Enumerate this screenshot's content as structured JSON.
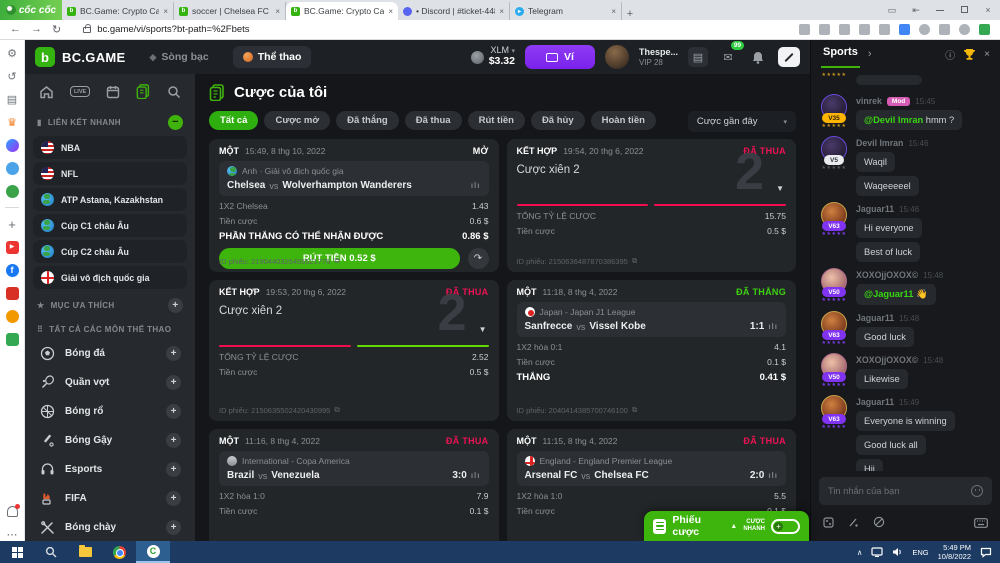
{
  "colors": {
    "accent_green": "#3fb30c",
    "lost_red": "#ed1254",
    "won_green": "#3ed312",
    "purple": "#8133f2"
  },
  "browser": {
    "brand": "cốc cốc",
    "url": "bc.game/vi/sports?bt-path=%2Fbets",
    "tabs": [
      {
        "title": "BC.Game: Crypto Casino Gan",
        "icon": "bcgame",
        "active": false
      },
      {
        "title": "soccer | Chelsea FC vs Wolve",
        "icon": "bcgame",
        "active": false
      },
      {
        "title": "BC.Game: Crypto Casino Gan",
        "icon": "bcgame",
        "active": true
      },
      {
        "title": "• Discord | #ticket-4481 | BC",
        "icon": "discord",
        "active": false
      },
      {
        "title": "Telegram",
        "icon": "telegram",
        "active": false
      }
    ]
  },
  "rail_icons": [
    "settings",
    "history",
    "feed",
    "crown",
    "messenger",
    "zalo",
    "games",
    "divider",
    "add",
    "youtube",
    "facebook",
    "shop",
    "alarm",
    "gift",
    "spacer",
    "bell",
    "more"
  ],
  "header": {
    "logo_letter": "b",
    "logo_text": "BC.GAME",
    "nav": [
      {
        "label": "Sòng bạc"
      },
      {
        "label": "Thể thao"
      }
    ],
    "active_nav": 1,
    "currency": "XLM",
    "balance": "$3.32",
    "wallet_label": "Ví",
    "username": "Thespe...",
    "vip_label": "VIP 28",
    "mail_badge": "99"
  },
  "sidebar": {
    "live_label": "LIVE",
    "quick_links_title": "LIÊN KẾT NHANH",
    "quick_links": [
      {
        "label": "NBA",
        "flag": "us"
      },
      {
        "label": "NFL",
        "flag": "us"
      },
      {
        "label": "ATP Astana, Kazakhstan",
        "flag": "globe"
      },
      {
        "label": "Cúp C1 châu Âu",
        "flag": "globe"
      },
      {
        "label": "Cúp C2 châu Âu",
        "flag": "globe"
      },
      {
        "label": "Giải vô địch quốc gia",
        "flag": "eng"
      }
    ],
    "favorites_title": "MỤC ƯA THÍCH",
    "all_sports_title": "TẤT CẢ CÁC MÔN THỂ THAO",
    "sports": [
      {
        "label": "Bóng đá",
        "icon": "football"
      },
      {
        "label": "Quần vợt",
        "icon": "tennis"
      },
      {
        "label": "Bóng rổ",
        "icon": "basketball"
      },
      {
        "label": "Bóng Gậy",
        "icon": "cricket"
      },
      {
        "label": "Esports",
        "icon": "esports"
      },
      {
        "label": "FIFA",
        "icon": "fifa"
      },
      {
        "label": "Bóng chày",
        "icon": "baseball"
      }
    ]
  },
  "main": {
    "title": "Cược của tôi",
    "filters": [
      "Tất cả",
      "Cược mở",
      "Đã thắng",
      "Đã thua",
      "Rút tiền",
      "Đã hủy",
      "Hoàn tiền"
    ],
    "active_filter": 0,
    "sort_label": "Cược gần đây",
    "labels": {
      "vs": "vs",
      "id_prefix": "ID phiếu:"
    },
    "cards": [
      {
        "kind": "single",
        "type_label": "MỘT",
        "time": "15:49, 8 thg 10, 2022",
        "status": "MỞ",
        "status_type": "open",
        "league": "Anh · Giải vô địch quốc gia",
        "league_flag": "globe",
        "home": "Chelsea",
        "away": "Wolverhampton Wanderers",
        "score": "",
        "rows": [
          {
            "label": "1X2 Chelsea",
            "value": "1.43"
          },
          {
            "label": "Tiền cược",
            "value": "0.6 $"
          }
        ],
        "result_label": "PHẦN THẮNG CÓ THỂ NHẬN ĐƯỢC",
        "result_value": "0.86 $",
        "cashout": "RÚT TIỀN 0.52 $",
        "bet_id": "2190440325455521776"
      },
      {
        "kind": "combo",
        "type_label": "KẾT HỢP",
        "time": "19:54, 20 thg 6, 2022",
        "status": "ĐÃ THUA",
        "status_type": "lost",
        "combo_title": "Cược xiên 2",
        "combo_count": "2",
        "legs": [
          "lost",
          "lost"
        ],
        "rows": [
          {
            "label": "TỔNG TỶ LỆ CƯỢC",
            "value": "15.75"
          },
          {
            "label": "Tiền cược",
            "value": "0.5 $"
          }
        ],
        "bet_id": "2150636487870386395"
      },
      {
        "kind": "combo",
        "type_label": "KẾT HỢP",
        "time": "19:53, 20 thg 6, 2022",
        "status": "ĐÃ THUA",
        "status_type": "lost",
        "combo_title": "Cược xiên 2",
        "combo_count": "2",
        "legs": [
          "lost",
          "won"
        ],
        "rows": [
          {
            "label": "TỔNG TỶ LỆ CƯỢC",
            "value": "2.52"
          },
          {
            "label": "Tiền cược",
            "value": "0.5 $"
          }
        ],
        "bet_id": "2150635502420430995"
      },
      {
        "kind": "single",
        "type_label": "MỘT",
        "time": "11:18, 8 thg 4, 2022",
        "status": "ĐÃ THẮNG",
        "status_type": "won",
        "league": "Japan - Japan J1 League",
        "league_flag": "jp",
        "home": "Sanfrecce",
        "away": "Vissel Kobe",
        "score": "1:1",
        "rows": [
          {
            "label": "1X2 hòa  0:1",
            "value": "4.1"
          },
          {
            "label": "Tiền cược",
            "value": "0.1 $"
          }
        ],
        "result_label": "THẮNG",
        "result_value": "0.41 $",
        "bet_id": "2040414385700746100"
      },
      {
        "kind": "single",
        "type_label": "MỘT",
        "time": "11:16, 8 thg 4, 2022",
        "status": "ĐÃ THUA",
        "status_type": "lost",
        "league": "International - Copa America",
        "league_flag": "int",
        "home": "Brazil",
        "away": "Venezuela",
        "score": "3:0",
        "rows": [
          {
            "label": "1X2 hòa  1:0",
            "value": "7.9"
          },
          {
            "label": "Tiền cược",
            "value": "0.1 $"
          }
        ]
      },
      {
        "kind": "single",
        "type_label": "MỘT",
        "time": "11:15, 8 thg 4, 2022",
        "status": "ĐÃ THUA",
        "status_type": "lost",
        "league": "England - England Premier League",
        "league_flag": "eng",
        "home": "Arsenal FC",
        "away": "Chelsea FC",
        "score": "2:0",
        "rows": [
          {
            "label": "1X2 hòa  1:0",
            "value": "5.5"
          },
          {
            "label": "Tiền cược",
            "value": "0.1 $"
          }
        ]
      }
    ]
  },
  "chat": {
    "tab": "Sports",
    "messages": [
      {
        "user": "vinrek",
        "badge": "Mod",
        "time": "15:45",
        "level": "V35",
        "level_type": "gold",
        "avatar": "dark1",
        "lines": [
          {
            "mention": "@Devil Imran",
            "text": " hmm ?"
          }
        ]
      },
      {
        "user": "Devil Imran",
        "time": "15:46",
        "level": "V5",
        "level_type": "light",
        "avatar": "dark1",
        "lines": [
          {
            "text": "Waqil"
          },
          {
            "text": "Waqeeeeel"
          }
        ]
      },
      {
        "user": "Jaguar11",
        "time": "15:46",
        "level": "V63",
        "level_type": "purple",
        "avatar": "jaguar",
        "lines": [
          {
            "text": "Hi everyone"
          },
          {
            "text": "Best of luck"
          }
        ]
      },
      {
        "user": "XOXOjjOXOX©",
        "time": "15:48",
        "level": "V50",
        "level_type": "purple",
        "avatar": "xoxo",
        "lines": [
          {
            "mention": "@Jaguar11",
            "text": " 👋"
          }
        ]
      },
      {
        "user": "Jaguar11",
        "time": "15:48",
        "level": "V63",
        "level_type": "purple",
        "avatar": "jaguar",
        "lines": [
          {
            "text": "Good luck"
          }
        ]
      },
      {
        "user": "XOXOjjOXOX©",
        "time": "15:48",
        "level": "V50",
        "level_type": "purple",
        "avatar": "xoxo",
        "lines": [
          {
            "text": "Likewise"
          }
        ]
      },
      {
        "user": "Jaguar11",
        "time": "15:49",
        "level": "V63",
        "level_type": "purple",
        "avatar": "jaguar",
        "lines": [
          {
            "text": "Everyone is winning"
          },
          {
            "text": "Good luck all"
          },
          {
            "text": "Hii"
          },
          {
            "text": "Hii"
          }
        ]
      }
    ],
    "input_placeholder": "Tin nhắn của bạn"
  },
  "betslip": {
    "label": "Phiếu cược",
    "quick_line1": "CƯỢC",
    "quick_line2": "NHANH"
  },
  "taskbar": {
    "lang": "ENG",
    "time": "5:49 PM",
    "date": "10/8/2022"
  }
}
